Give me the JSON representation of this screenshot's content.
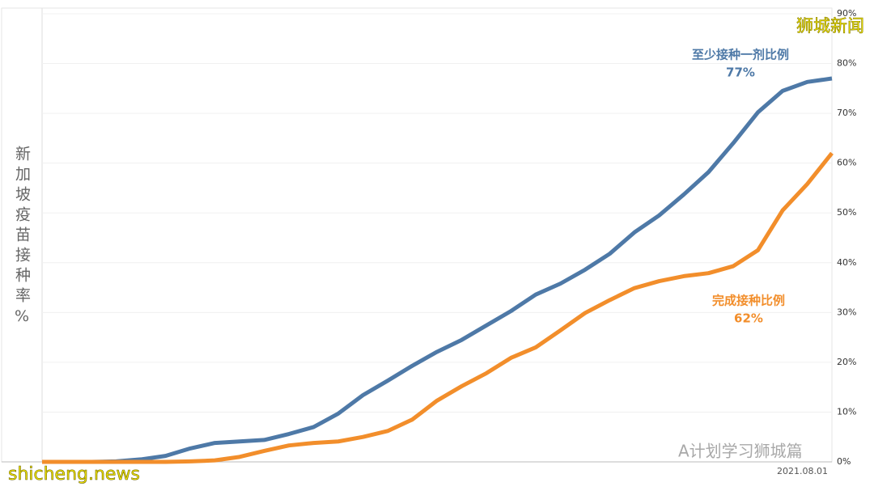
{
  "chart_data": {
    "type": "line",
    "y_label": "新加坡疫苗接种率%",
    "categories": [
      null,
      null,
      null,
      null,
      null,
      null,
      null,
      null,
      null,
      null,
      null,
      null,
      null,
      null,
      null,
      null,
      null,
      null,
      null,
      null,
      null,
      null,
      null,
      null,
      null,
      null,
      null,
      null,
      null,
      null,
      null,
      null,
      "2021.08.01"
    ],
    "series": [
      {
        "name": "至少接种一剂比例",
        "color": "#4e79a7",
        "end_label": "77%",
        "values": [
          0,
          0,
          0,
          0.1,
          0.5,
          1.2,
          2.7,
          3.8,
          4.1,
          4.4,
          5.6,
          7.0,
          9.7,
          13.4,
          16.3,
          19.3,
          22.1,
          24.5,
          27.4,
          30.3,
          33.6,
          35.8,
          38.6,
          41.8,
          46.1,
          49.5,
          53.7,
          58.2,
          64,
          70.2,
          74.5,
          76.3,
          77
        ]
      },
      {
        "name": "完成接种比例",
        "color": "#f28e2b",
        "end_label": "62%",
        "values": [
          0,
          0,
          0,
          0,
          0,
          0,
          0.1,
          0.3,
          1.0,
          2.2,
          3.3,
          3.8,
          4.1,
          5.0,
          6.2,
          8.5,
          12.3,
          15.2,
          17.8,
          20.9,
          23.0,
          26.4,
          29.9,
          32.5,
          34.9,
          36.3,
          37.3,
          37.9,
          39.3,
          42.5,
          50.5,
          55.8,
          62
        ]
      }
    ],
    "ylim": [
      0,
      90
    ],
    "yticks": [
      {
        "value": 0,
        "label": "0%"
      },
      {
        "value": 10,
        "label": "10%"
      },
      {
        "value": 20,
        "label": "20%"
      },
      {
        "value": 30,
        "label": "30%"
      },
      {
        "value": 40,
        "label": "40%"
      },
      {
        "value": 50,
        "label": "50%"
      },
      {
        "value": 60,
        "label": "60%"
      },
      {
        "value": 70,
        "label": "70%"
      },
      {
        "value": 80,
        "label": "80%"
      },
      {
        "value": 90,
        "label": "90%"
      }
    ],
    "grid": true,
    "watermarks": [
      "狮城新闻",
      "A计划学习狮城篇",
      "shicheng.news"
    ]
  }
}
